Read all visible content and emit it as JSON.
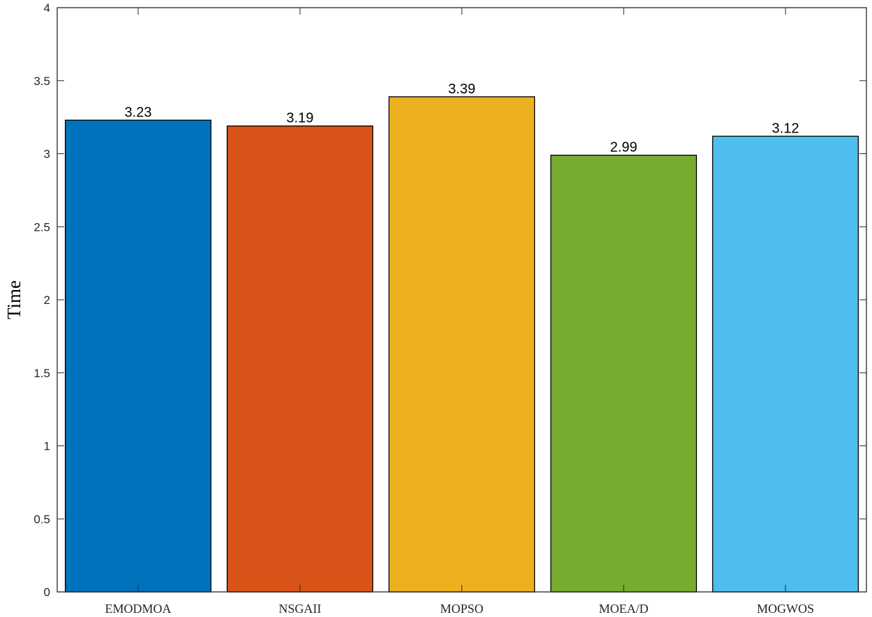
{
  "chart_data": {
    "type": "bar",
    "title": "",
    "xlabel": "",
    "ylabel": "Time",
    "ylim": [
      0,
      4
    ],
    "yticks": [
      0,
      0.5,
      1,
      1.5,
      2,
      2.5,
      3,
      3.5,
      4
    ],
    "ytick_labels": [
      "0",
      "0.5",
      "1",
      "1.5",
      "2",
      "2.5",
      "3",
      "3.5",
      "4"
    ],
    "categories": [
      "EMODMOA",
      "NSGAII",
      "MOPSO",
      "MOEA/D",
      "MOGWOS"
    ],
    "values": [
      3.23,
      3.19,
      3.39,
      2.99,
      3.12
    ],
    "value_labels": [
      "3.23",
      "3.19",
      "3.39",
      "2.99",
      "3.12"
    ],
    "colors": [
      "#0072BD",
      "#D95319",
      "#EDB120",
      "#77AC30",
      "#4DBEEE"
    ],
    "grid": false,
    "legend": "none"
  }
}
